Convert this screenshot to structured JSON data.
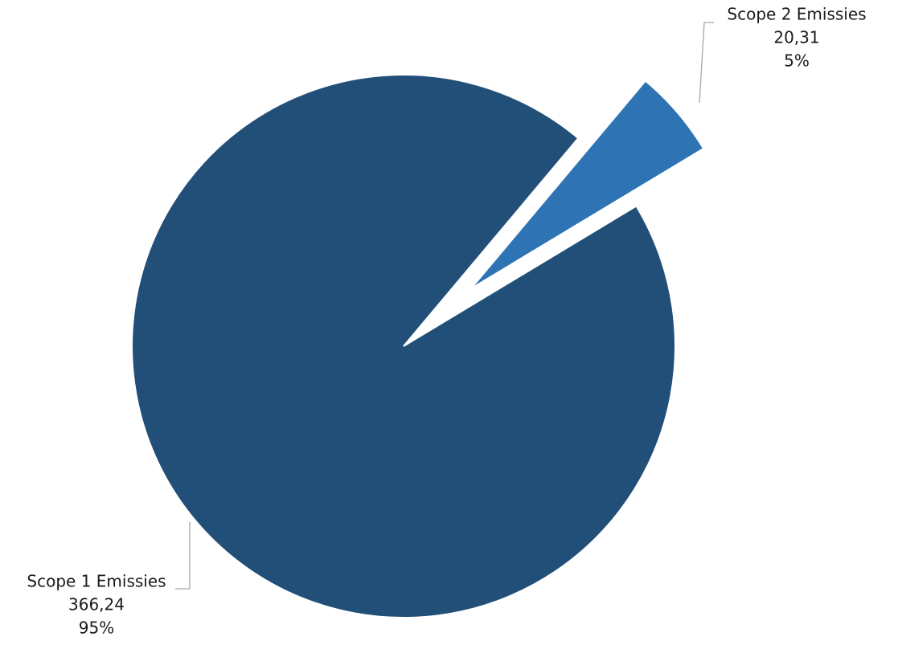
{
  "chart_data": {
    "type": "pie",
    "title": "",
    "legend": "none",
    "slices": [
      {
        "label": "Scope 1 Emissies",
        "value_text": "366,24",
        "percent_text": "95%",
        "value": 366.24,
        "color": "#214f78",
        "exploded": false
      },
      {
        "label": "Scope 2 Emissies",
        "value_text": "20,31",
        "percent_text": "5%",
        "value": 20.31,
        "color": "#2e74b5",
        "exploded": true
      }
    ]
  },
  "colors": {
    "leader_line": "#a6a6a6",
    "label_text": "#1a1a1a",
    "background": "#ffffff"
  }
}
